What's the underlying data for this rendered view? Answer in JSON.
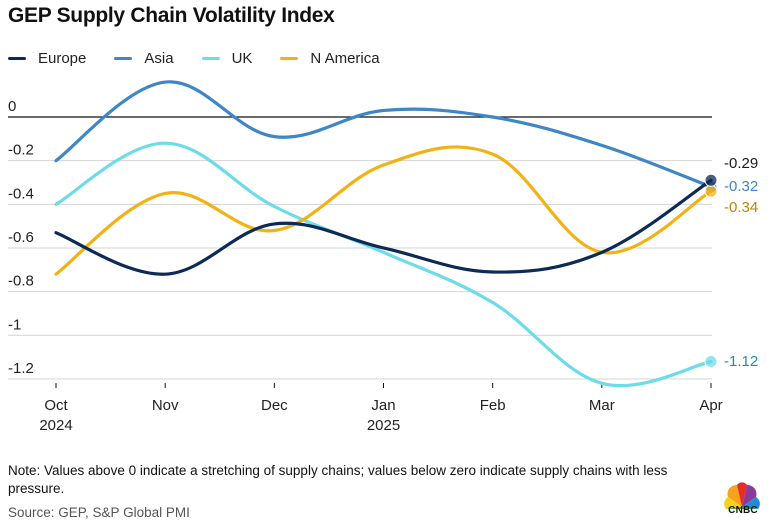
{
  "header": {
    "title": "GEP Supply Chain Volatility Index"
  },
  "legend": [
    {
      "label": "Europe",
      "color": "#0c2a55"
    },
    {
      "label": "Asia",
      "color": "#3f86c6"
    },
    {
      "label": "UK",
      "color": "#6ddbe8"
    },
    {
      "label": "N America",
      "color": "#f2b215"
    }
  ],
  "chart_data": {
    "type": "line",
    "title": "GEP Supply Chain Volatility Index",
    "xlabel": "",
    "ylabel": "",
    "categories": [
      "Oct 2024",
      "Nov",
      "Dec",
      "Jan 2025",
      "Feb",
      "Mar",
      "Apr"
    ],
    "x_tick_lines": [
      [
        "Oct",
        "2024"
      ],
      [
        "Nov"
      ],
      [
        "Dec"
      ],
      [
        "Jan",
        "2025"
      ],
      [
        "Feb"
      ],
      [
        "Mar"
      ],
      [
        "Apr"
      ]
    ],
    "ylim": [
      -1.2,
      0
    ],
    "y_ticks": [
      0,
      -0.2,
      -0.4,
      -0.6,
      -0.8,
      -1,
      -1.2
    ],
    "y_tick_labels": [
      "0",
      "-0.2",
      "-0.4",
      "-0.6",
      "-0.8",
      "-1",
      "-1.2"
    ],
    "series": [
      {
        "name": "Europe",
        "color": "#0c2a55",
        "values": [
          -0.53,
          -0.72,
          -0.49,
          -0.6,
          -0.71,
          -0.62,
          -0.29
        ],
        "end_label": "-0.29",
        "end_label_color": "#1a1a1a"
      },
      {
        "name": "Asia",
        "color": "#3f86c6",
        "values": [
          -0.2,
          0.16,
          -0.09,
          0.03,
          0.0,
          -0.13,
          -0.32
        ],
        "end_label": "-0.32",
        "end_label_color": "#3f86c6"
      },
      {
        "name": "UK",
        "color": "#6ddbe8",
        "values": [
          -0.4,
          -0.12,
          -0.41,
          -0.62,
          -0.85,
          -1.22,
          -1.12
        ],
        "end_label": "-1.12",
        "end_label_color": "#1f8fa0"
      },
      {
        "name": "N America",
        "color": "#f2b215",
        "values": [
          -0.72,
          -0.35,
          -0.52,
          -0.22,
          -0.17,
          -0.62,
          -0.34
        ],
        "end_label": "-0.34",
        "end_label_color": "#b8860b"
      }
    ]
  },
  "footer": {
    "note": "Note: Values above 0 indicate a stretching of supply chains; values below zero indicate supply chains with less pressure.",
    "source": "Source: GEP, S&P Global PMI",
    "brand": "CNBC"
  }
}
